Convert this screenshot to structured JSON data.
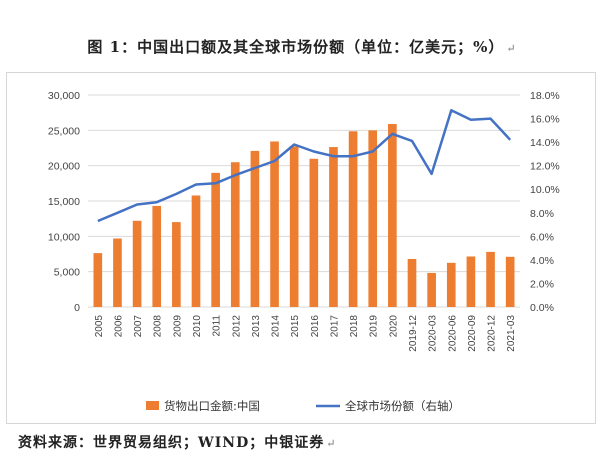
{
  "header": {
    "title": "图 1：中国出口额及其全球市场份额（单位：亿美元；%）",
    "return_mark": "↵"
  },
  "footer": {
    "source": "资料来源：世界贸易组织；WIND；中银证券",
    "return_mark": "↵"
  },
  "chart_data": {
    "type": "bar+line",
    "categories": [
      "2005",
      "2006",
      "2007",
      "2008",
      "2009",
      "2010",
      "2011",
      "2012",
      "2013",
      "2014",
      "2015",
      "2016",
      "2017",
      "2018",
      "2019",
      "2020",
      "2019-12",
      "2020-03",
      "2020-06",
      "2020-09",
      "2020-12",
      "2021-03"
    ],
    "series": [
      {
        "name": "货物出口金额:中国",
        "type": "bar",
        "axis": "left",
        "color": "#ED7D31",
        "values": [
          7620,
          9690,
          12200,
          14307,
          12016,
          15778,
          18984,
          20487,
          22090,
          23423,
          22735,
          20976,
          22634,
          24867,
          24990,
          25900,
          6800,
          4820,
          6250,
          7150,
          7800,
          7100
        ]
      },
      {
        "name": "全球市场份额（右轴）",
        "type": "line",
        "axis": "right",
        "color": "#4472C4",
        "values": [
          7.3,
          8.0,
          8.7,
          8.9,
          9.6,
          10.4,
          10.5,
          11.2,
          11.8,
          12.4,
          13.8,
          13.2,
          12.8,
          12.8,
          13.2,
          14.7,
          14.1,
          11.3,
          16.7,
          15.9,
          16.0,
          14.2
        ]
      }
    ],
    "y_left": {
      "min": 0,
      "max": 30000,
      "step": 5000,
      "ticks": [
        "0",
        "5,000",
        "10,000",
        "15,000",
        "20,000",
        "25,000",
        "30,000"
      ]
    },
    "y_right": {
      "min": 0,
      "max": 18,
      "step": 2,
      "ticks": [
        "0.0%",
        "2.0%",
        "4.0%",
        "6.0%",
        "8.0%",
        "10.0%",
        "12.0%",
        "14.0%",
        "16.0%",
        "18.0%"
      ]
    },
    "grid": true,
    "legend_position": "bottom"
  }
}
